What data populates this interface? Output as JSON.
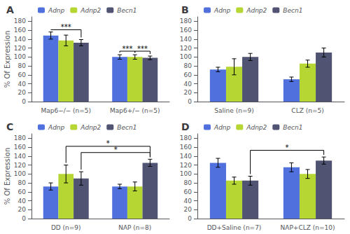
{
  "chart_data": [
    {
      "type": "bar",
      "title": "A",
      "ylabel": "% Of Expression",
      "categories": [
        "Map6−/− (n=5)",
        "Map6+/− (n=5)"
      ],
      "series": [
        {
          "name": "Adnp",
          "values": [
            148,
            100
          ],
          "errors": [
            8,
            5
          ]
        },
        {
          "name": "Adnp2",
          "values": [
            137,
            100
          ],
          "errors": [
            12,
            5
          ]
        },
        {
          "name": "Becn1",
          "values": [
            132,
            98
          ],
          "errors": [
            7,
            4
          ]
        }
      ],
      "ylim": [
        0,
        190
      ],
      "yticks": [
        0,
        20,
        40,
        60,
        80,
        100,
        120,
        140,
        160,
        180
      ],
      "grid": false,
      "legend": "upper left",
      "annotations": [
        {
          "text": "***",
          "from": [
            "Map6−/− (n=5)",
            "Adnp"
          ],
          "to": [
            "Map6−/− (n=5)",
            "Becn1"
          ],
          "y": 161
        },
        {
          "text": "***",
          "from": [
            "Map6+/− (n=5)",
            "Adnp"
          ],
          "to": [
            "Map6+/− (n=5)",
            "Adnp2"
          ],
          "y": 113
        },
        {
          "text": "***",
          "from": [
            "Map6+/− (n=5)",
            "Adnp2"
          ],
          "to": [
            "Map6+/− (n=5)",
            "Becn1"
          ],
          "y": 113
        }
      ]
    },
    {
      "type": "bar",
      "title": "B",
      "categories": [
        "Saline (n=9)",
        "CLZ (n=5)"
      ],
      "series": [
        {
          "name": "Adnp",
          "values": [
            72,
            50
          ],
          "errors": [
            5,
            5
          ]
        },
        {
          "name": "Adnp2",
          "values": [
            78,
            85
          ],
          "errors": [
            18,
            8
          ]
        },
        {
          "name": "Becn1",
          "values": [
            100,
            110
          ],
          "errors": [
            8,
            10
          ]
        }
      ],
      "ylim": [
        0,
        190
      ],
      "yticks": [
        0,
        20,
        40,
        60,
        80,
        100,
        120,
        140,
        160,
        180
      ],
      "grid": false,
      "legend": "upper left"
    },
    {
      "type": "bar",
      "title": "C",
      "ylabel": "% Of Expression",
      "categories": [
        "DD (n=9)",
        "NAP (n=8)"
      ],
      "series": [
        {
          "name": "Adnp",
          "values": [
            72,
            72
          ],
          "errors": [
            8,
            5
          ]
        },
        {
          "name": "Adnp2",
          "values": [
            100,
            72
          ],
          "errors": [
            20,
            10
          ]
        },
        {
          "name": "Becn1",
          "values": [
            90,
            125
          ],
          "errors": [
            15,
            8
          ]
        }
      ],
      "ylim": [
        0,
        190
      ],
      "yticks": [
        0,
        20,
        40,
        60,
        80,
        100,
        120,
        140,
        160,
        180
      ],
      "grid": false,
      "legend": "upper left",
      "annotations": [
        {
          "text": "*",
          "from": [
            "DD (n=9)",
            "Adnp2"
          ],
          "to": [
            "NAP (n=8)",
            "Becn1"
          ],
          "y": 162
        },
        {
          "text": "*",
          "from": [
            "DD (n=9)",
            "Becn1"
          ],
          "to": [
            "NAP (n=8)",
            "Becn1"
          ],
          "y": 148
        }
      ]
    },
    {
      "type": "bar",
      "title": "D",
      "categories": [
        "DD+Saline (n=7)",
        "NAP+CLZ (n=10)"
      ],
      "series": [
        {
          "name": "Adnp",
          "values": [
            125,
            115
          ],
          "errors": [
            10,
            10
          ]
        },
        {
          "name": "Adnp2",
          "values": [
            85,
            100
          ],
          "errors": [
            8,
            10
          ]
        },
        {
          "name": "Becn1",
          "values": [
            85,
            130
          ],
          "errors": [
            10,
            8
          ]
        }
      ],
      "ylim": [
        0,
        190
      ],
      "yticks": [
        0,
        20,
        40,
        60,
        80,
        100,
        120,
        140,
        160,
        180
      ],
      "grid": false,
      "legend": "upper left",
      "annotations": [
        {
          "text": "*",
          "from": [
            "DD+Saline (n=7)",
            "Becn1"
          ],
          "to": [
            "NAP+CLZ (n=10)",
            "Becn1"
          ],
          "y": 153
        }
      ]
    }
  ]
}
